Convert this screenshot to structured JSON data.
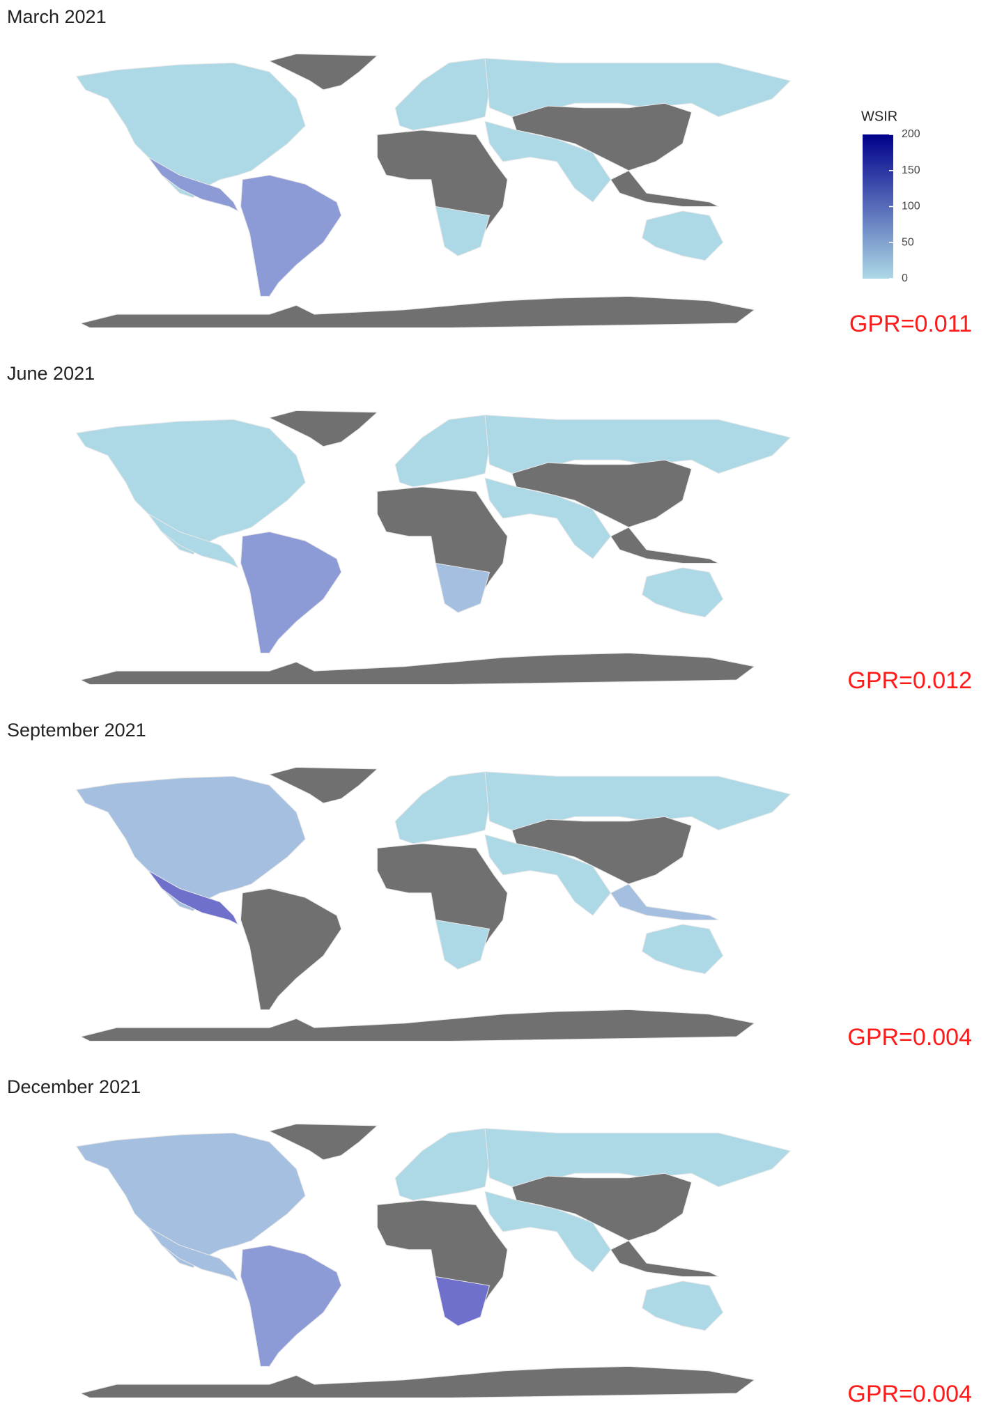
{
  "panels": [
    {
      "title": "March 2021",
      "gpr": "GPR=0.011"
    },
    {
      "title": "June 2021",
      "gpr": "GPR=0.012"
    },
    {
      "title": "September 2021",
      "gpr": "GPR=0.004"
    },
    {
      "title": "December 2021",
      "gpr": "GPR=0.004"
    }
  ],
  "legend": {
    "title": "WSIR",
    "lim": [
      0,
      200
    ],
    "ticks": [
      0,
      50,
      100,
      150,
      200
    ],
    "colors": [
      "#add8e6",
      "#00008b"
    ]
  }
}
